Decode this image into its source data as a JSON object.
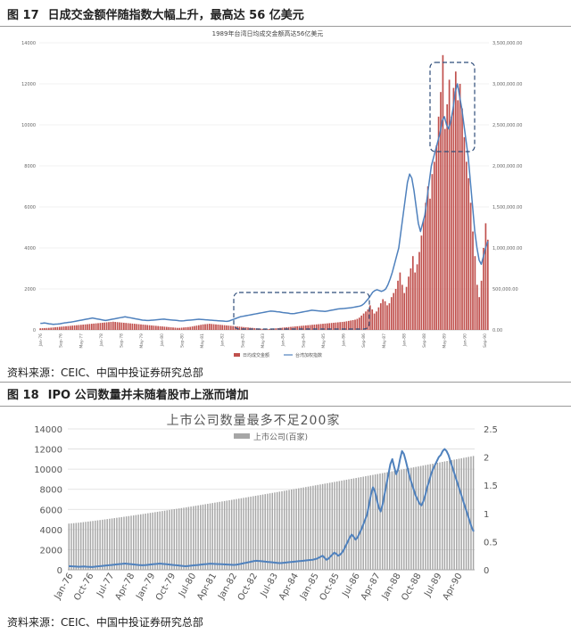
{
  "figures": [
    {
      "label": "图 17",
      "title": "日成交金额伴随指数大幅上升，最高达 56 亿美元",
      "source": "资料来源：CEIC、中国中投证券研究总部"
    },
    {
      "label": "图 18",
      "title": "IPO 公司数量并未随着股市上涨而增加",
      "source": "资料来源：CEIC、中国中投证券研究总部"
    }
  ],
  "chart_data": [
    {
      "type": "bar",
      "title": "1989年台湾日均成交金额高达56亿美元",
      "x_tick_labels": [
        "Jan-76",
        "Sep-76",
        "May-77",
        "Jan-78",
        "Sep-78",
        "May-79",
        "Jan-80",
        "Sep-80",
        "May-81",
        "Jan-82",
        "Sep-82",
        "May-83",
        "Jan-84",
        "Sep-84",
        "May-85",
        "Jan-86",
        "Sep-86",
        "May-87",
        "Jan-88",
        "Sep-88",
        "May-89",
        "Jan-90",
        "Sep-90"
      ],
      "y_left_ticks": [
        "0",
        "2000",
        "4000",
        "6000",
        "8000",
        "10000",
        "12000",
        "14000"
      ],
      "y_right_ticks": [
        "0.00",
        "500,000.00",
        "1,000,000.00",
        "1,500,000.00",
        "2,000,000.00",
        "2,500,000.00",
        "3,000,000.00",
        "3,500,000.00"
      ],
      "ylim_left": [
        0,
        14000
      ],
      "ylim_right": [
        0,
        3500000
      ],
      "series": [
        {
          "name": "日均成交金额",
          "axis": "left",
          "kind": "bar",
          "color": "#c0504d",
          "values": [
            80,
            85,
            90,
            95,
            100,
            110,
            120,
            130,
            140,
            150,
            160,
            170,
            180,
            190,
            200,
            210,
            220,
            230,
            240,
            250,
            260,
            270,
            280,
            290,
            300,
            310,
            320,
            330,
            340,
            350,
            360,
            370,
            380,
            390,
            400,
            390,
            380,
            370,
            360,
            350,
            340,
            330,
            320,
            310,
            300,
            290,
            280,
            270,
            260,
            250,
            240,
            230,
            220,
            210,
            200,
            190,
            180,
            170,
            160,
            150,
            140,
            130,
            120,
            110,
            100,
            100,
            110,
            120,
            130,
            140,
            150,
            170,
            190,
            210,
            230,
            250,
            270,
            280,
            290,
            300,
            290,
            280,
            270,
            260,
            250,
            240,
            230,
            220,
            210,
            200,
            190,
            180,
            170,
            160,
            150,
            140,
            130,
            120,
            110,
            100,
            90,
            80,
            70,
            60,
            50,
            40,
            40,
            50,
            60,
            70,
            80,
            90,
            100,
            110,
            120,
            130,
            140,
            150,
            160,
            170,
            180,
            190,
            200,
            210,
            220,
            230,
            240,
            250,
            260,
            270,
            280,
            290,
            300,
            310,
            320,
            330,
            340,
            350,
            360,
            370,
            380,
            390,
            400,
            420,
            440,
            460,
            480,
            500,
            540,
            600,
            700,
            800,
            900,
            1000,
            1200,
            1000,
            800,
            900,
            1100,
            1300,
            1500,
            1400,
            1200,
            1300,
            1600,
            1800,
            2000,
            2400,
            2800,
            2200,
            1800,
            2100,
            2600,
            3000,
            3600,
            2800,
            3200,
            3800,
            4600,
            5400,
            6200,
            7000,
            6400,
            7600,
            8200,
            9000,
            10400,
            11600,
            13400,
            9800,
            11000,
            12200,
            10400,
            11800,
            12600,
            11200,
            12000,
            10800,
            9400,
            8200,
            7400,
            6200,
            4800,
            3600,
            2200,
            1600,
            2400,
            4000,
            5200,
            4400
          ]
        },
        {
          "name": "台湾加权指数",
          "axis": "right",
          "kind": "line",
          "color": "#4f81bd",
          "values": [
            80000,
            82000,
            85000,
            80000,
            75000,
            72000,
            68000,
            70000,
            72000,
            75000,
            80000,
            85000,
            88000,
            92000,
            95000,
            100000,
            105000,
            110000,
            115000,
            120000,
            125000,
            130000,
            135000,
            140000,
            145000,
            140000,
            135000,
            130000,
            125000,
            120000,
            115000,
            120000,
            125000,
            130000,
            135000,
            140000,
            145000,
            150000,
            155000,
            160000,
            155000,
            150000,
            145000,
            140000,
            135000,
            130000,
            125000,
            120000,
            118000,
            116000,
            115000,
            118000,
            120000,
            122000,
            125000,
            128000,
            130000,
            132000,
            128000,
            125000,
            122000,
            120000,
            118000,
            115000,
            112000,
            110000,
            112000,
            115000,
            118000,
            120000,
            122000,
            125000,
            128000,
            130000,
            128000,
            126000,
            124000,
            122000,
            120000,
            118000,
            116000,
            114000,
            112000,
            110000,
            108000,
            106000,
            105000,
            110000,
            120000,
            130000,
            140000,
            150000,
            160000,
            165000,
            170000,
            175000,
            180000,
            185000,
            190000,
            195000,
            200000,
            205000,
            210000,
            215000,
            220000,
            225000,
            230000,
            228000,
            225000,
            222000,
            220000,
            215000,
            210000,
            208000,
            205000,
            200000,
            198000,
            200000,
            205000,
            210000,
            215000,
            220000,
            225000,
            230000,
            235000,
            240000,
            238000,
            235000,
            232000,
            230000,
            228000,
            226000,
            230000,
            235000,
            240000,
            245000,
            250000,
            255000,
            258000,
            260000,
            262000,
            265000,
            268000,
            270000,
            275000,
            280000,
            285000,
            290000,
            300000,
            320000,
            350000,
            380000,
            420000,
            460000,
            480000,
            490000,
            480000,
            470000,
            480000,
            500000,
            550000,
            620000,
            700000,
            800000,
            900000,
            1000000,
            1200000,
            1400000,
            1600000,
            1800000,
            1900000,
            1850000,
            1700000,
            1500000,
            1300000,
            1200000,
            1300000,
            1400000,
            1600000,
            1800000,
            2000000,
            2100000,
            2200000,
            2300000,
            2400000,
            2550000,
            2600000,
            2500000,
            2450000,
            2550000,
            2700000,
            2900000,
            3000000,
            2850000,
            2700000,
            2500000,
            2300000,
            2100000,
            1800000,
            1500000,
            1200000,
            1000000,
            850000,
            800000,
            900000,
            1000000,
            1080000
          ]
        }
      ],
      "legend": [
        "日均成交金额",
        "台湾加权指数"
      ],
      "legend_position": "bottom"
    },
    {
      "type": "bar",
      "title": "上市公司数量最多不足200家",
      "x_tick_labels": [
        "Jan-76",
        "Oct-76",
        "Jul-77",
        "Apr-78",
        "Jan-79",
        "Oct-79",
        "Jul-80",
        "Apr-81",
        "Jan-82",
        "Oct-82",
        "Jul-83",
        "Apr-84",
        "Jan-85",
        "Oct-85",
        "Jul-86",
        "Apr-87",
        "Jan-88",
        "Oct-88",
        "Jul-89",
        "Apr-90"
      ],
      "y_left_ticks": [
        "0",
        "2000",
        "4000",
        "6000",
        "8000",
        "10000",
        "12000",
        "14000"
      ],
      "y_right_ticks": [
        "0",
        "0.5",
        "1",
        "1.5",
        "2",
        "2.5"
      ],
      "ylim_left": [
        0,
        14000
      ],
      "ylim_right": [
        0,
        2.5
      ],
      "series": [
        {
          "name": "上市公司(百家)",
          "axis": "right",
          "kind": "bar",
          "color": "#a6a6a6",
          "start": 0.82,
          "end": 2.02
        },
        {
          "name": "台湾加权指数",
          "axis": "left",
          "kind": "line",
          "color": "#4f81bd",
          "legend": false,
          "values": [
            350,
            360,
            340,
            330,
            320,
            300,
            310,
            320,
            330,
            310,
            300,
            290,
            280,
            300,
            320,
            340,
            360,
            380,
            400,
            420,
            440,
            460,
            480,
            500,
            520,
            540,
            560,
            580,
            600,
            620,
            600,
            580,
            560,
            540,
            520,
            500,
            480,
            460,
            450,
            460,
            480,
            500,
            520,
            540,
            560,
            580,
            600,
            620,
            600,
            580,
            560,
            540,
            520,
            500,
            480,
            460,
            440,
            420,
            400,
            380,
            360,
            370,
            390,
            410,
            430,
            450,
            470,
            490,
            510,
            530,
            550,
            570,
            590,
            610,
            600,
            590,
            580,
            570,
            560,
            550,
            540,
            530,
            520,
            510,
            500,
            490,
            500,
            520,
            560,
            600,
            640,
            680,
            720,
            760,
            800,
            840,
            880,
            900,
            880,
            860,
            840,
            820,
            800,
            780,
            760,
            740,
            720,
            700,
            680,
            660,
            680,
            700,
            720,
            740,
            760,
            780,
            800,
            820,
            840,
            860,
            880,
            900,
            920,
            940,
            960,
            980,
            1000,
            1050,
            1100,
            1200,
            1300,
            1400,
            1200,
            1000,
            1100,
            1300,
            1500,
            1700,
            1600,
            1400,
            1500,
            1700,
            2000,
            2400,
            2800,
            3200,
            3500,
            3300,
            3000,
            3200,
            3600,
            4000,
            4500,
            5000,
            5500,
            6500,
            7500,
            8200,
            7800,
            7000,
            6200,
            5800,
            6500,
            7500,
            8500,
            9500,
            10500,
            11000,
            10200,
            9500,
            10000,
            11000,
            11800,
            11500,
            10800,
            10000,
            9200,
            8600,
            8000,
            7400,
            7000,
            6600,
            6400,
            6800,
            7400,
            8200,
            8800,
            9500,
            10000,
            10400,
            10800,
            11200,
            11400,
            11800,
            12000,
            11800,
            11400,
            10800,
            10200,
            9600,
            9000,
            8400,
            7800,
            7200,
            6600,
            6000,
            5400,
            4800,
            4200,
            3800
          ]
        }
      ],
      "legend": [
        "上市公司(百家)"
      ],
      "legend_position": "top-center"
    }
  ]
}
